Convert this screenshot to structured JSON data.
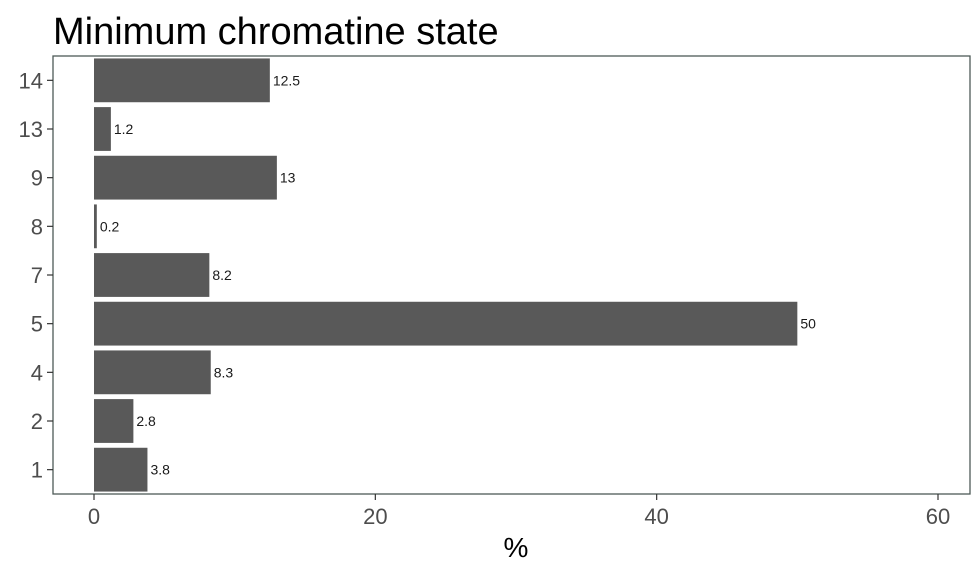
{
  "chart_data": {
    "type": "bar",
    "orientation": "horizontal",
    "title": "Minimum chromatine state",
    "xlabel": "%",
    "ylabel": "",
    "categories": [
      "1",
      "2",
      "4",
      "5",
      "7",
      "8",
      "9",
      "13",
      "14"
    ],
    "values": [
      3.8,
      2.8,
      8.3,
      50,
      8.2,
      0.2,
      13,
      1.2,
      12.5
    ],
    "value_labels": [
      "3.8",
      "2.8",
      "8.3",
      "50",
      "8.2",
      "0.2",
      "13",
      "1.2",
      "12.5"
    ],
    "xlim": [
      -3,
      60.5
    ],
    "xticks": [
      0,
      20,
      40,
      60
    ],
    "xtick_labels": [
      "0",
      "20",
      "40",
      "60"
    ],
    "grid": false,
    "legend": "none",
    "bar_color": "#595959"
  }
}
